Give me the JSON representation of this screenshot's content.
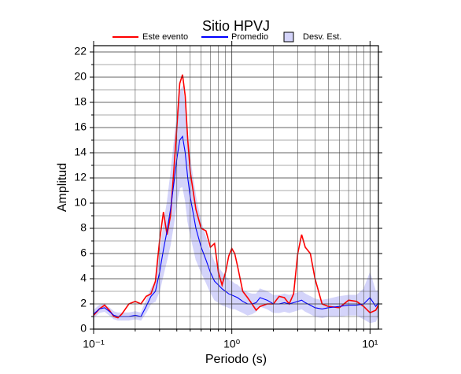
{
  "chart_data": {
    "type": "line",
    "title": "Sitio HPVJ",
    "xlabel": "Periodo (s)",
    "ylabel": "Amplitud",
    "xscale": "log",
    "grid": true,
    "legend": "top",
    "x": [
      0.1,
      0.11,
      0.12,
      0.13,
      0.14,
      0.15,
      0.16,
      0.18,
      0.2,
      0.22,
      0.24,
      0.26,
      0.28,
      0.3,
      0.32,
      0.34,
      0.36,
      0.38,
      0.4,
      0.42,
      0.44,
      0.46,
      0.48,
      0.5,
      0.55,
      0.6,
      0.65,
      0.7,
      0.75,
      0.8,
      0.85,
      0.9,
      0.95,
      1.0,
      1.05,
      1.1,
      1.2,
      1.3,
      1.4,
      1.5,
      1.6,
      1.8,
      2.0,
      2.2,
      2.4,
      2.6,
      2.8,
      3.0,
      3.2,
      3.4,
      3.7,
      4.0,
      4.5,
      5,
      6,
      7,
      8,
      9,
      10,
      11,
      11.5
    ],
    "band": {
      "name": "Desv. Est.",
      "color": "#d4d4fa",
      "lower": [
        0.9,
        1.3,
        1.4,
        1.1,
        0.8,
        0.7,
        0.7,
        0.7,
        0.8,
        0.7,
        1.3,
        2.0,
        2.2,
        3.0,
        4.3,
        5.5,
        6.7,
        8.3,
        10.0,
        11.2,
        11.3,
        10.2,
        8.5,
        7.5,
        5.5,
        4.5,
        3.7,
        2.9,
        2.3,
        2.1,
        1.9,
        1.8,
        1.7,
        1.6,
        1.6,
        1.5,
        1.3,
        1.1,
        1.2,
        1.4,
        1.8,
        1.6,
        1.3,
        1.3,
        1.4,
        1.3,
        1.4,
        1.5,
        1.6,
        1.4,
        1.2,
        1.0,
        0.9,
        1.0,
        1.0,
        1.1,
        1.1,
        0.8,
        0.5,
        0.6,
        1.1
      ],
      "upper": [
        1.5,
        1.9,
        2.0,
        1.7,
        1.4,
        1.3,
        1.3,
        1.3,
        1.4,
        1.3,
        2.3,
        3.2,
        3.8,
        6.0,
        8.3,
        10.1,
        12.3,
        14.7,
        17.0,
        18.8,
        19.3,
        17.8,
        15.5,
        13.5,
        10.5,
        8.5,
        7.3,
        6.1,
        5.3,
        4.9,
        4.5,
        4.2,
        3.9,
        3.8,
        3.6,
        3.5,
        3.1,
        2.9,
        2.8,
        2.8,
        3.2,
        3.0,
        2.7,
        2.7,
        2.8,
        2.7,
        2.8,
        2.9,
        3.0,
        2.8,
        2.6,
        2.4,
        2.3,
        2.4,
        2.6,
        2.7,
        2.7,
        3.2,
        4.5,
        3.0,
        3.1
      ]
    },
    "series": [
      {
        "name": "Este evento",
        "color": "#ff0000",
        "values": [
          1.1,
          1.6,
          1.9,
          1.5,
          1.0,
          0.9,
          1.2,
          2.0,
          2.2,
          2.0,
          2.6,
          2.8,
          3.8,
          7.0,
          9.3,
          7.5,
          9.0,
          12.5,
          16,
          19.5,
          20.2,
          18.5,
          15,
          12.5,
          9.5,
          8.0,
          7.8,
          6.5,
          6.8,
          4.5,
          3.5,
          4.5,
          5.8,
          6.4,
          6.0,
          5.0,
          3.0,
          2.5,
          2.0,
          1.5,
          1.8,
          2.0,
          2.0,
          2.6,
          2.5,
          2.0,
          2.8,
          6.0,
          7.5,
          6.5,
          6.0,
          4.0,
          2.0,
          1.8,
          1.7,
          2.3,
          2.2,
          1.8,
          1.3,
          1.5,
          1.9
        ]
      },
      {
        "name": "Promedio",
        "color": "#0000ff",
        "values": [
          1.2,
          1.6,
          1.7,
          1.4,
          1.1,
          1.0,
          1.0,
          1.0,
          1.1,
          1.0,
          1.8,
          2.6,
          3.0,
          4.5,
          6.3,
          7.8,
          9.5,
          11.5,
          13.5,
          15.0,
          15.3,
          14.0,
          12.0,
          10.5,
          8.0,
          6.5,
          5.5,
          4.5,
          3.8,
          3.5,
          3.2,
          3.0,
          2.8,
          2.7,
          2.6,
          2.5,
          2.2,
          2.0,
          2.0,
          2.1,
          2.5,
          2.3,
          2.0,
          2.0,
          2.1,
          2.0,
          2.1,
          2.2,
          2.3,
          2.1,
          1.9,
          1.7,
          1.6,
          1.7,
          1.8,
          1.9,
          1.9,
          2.0,
          2.5,
          1.8,
          2.1
        ]
      }
    ],
    "xlim": [
      0.1,
      11.5
    ],
    "ylim": [
      0,
      22.5
    ],
    "xticks": [
      {
        "value": 0.1,
        "label": "10⁻¹"
      },
      {
        "value": 1,
        "label": "10⁰"
      },
      {
        "value": 10,
        "label": "10¹"
      }
    ],
    "xminor": [
      0.2,
      0.3,
      0.4,
      0.5,
      0.6,
      0.7,
      0.8,
      0.9,
      2,
      3,
      4,
      5,
      6,
      7,
      8,
      9
    ],
    "yticks": [
      0,
      2,
      4,
      6,
      8,
      10,
      12,
      14,
      16,
      18,
      20,
      22
    ],
    "yminor": [
      1,
      3,
      5,
      7,
      9,
      11,
      13,
      15,
      17,
      19,
      21
    ]
  }
}
